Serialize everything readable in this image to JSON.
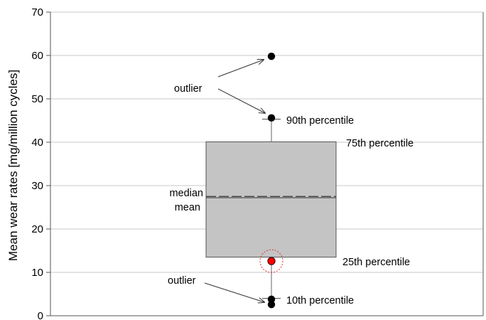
{
  "chart_data": {
    "type": "box",
    "ylabel": "Mean wear rates [mg/million cycles]",
    "ylim": [
      0,
      70
    ],
    "yticks": [
      0,
      10,
      20,
      30,
      40,
      50,
      60,
      70
    ],
    "grid": true,
    "box": {
      "p10": 4.0,
      "p25": 13.5,
      "median": 27.2,
      "mean": 27.5,
      "p75": 40.1,
      "p90": 45.3
    },
    "outliers": [
      59.8,
      45.6,
      3.8,
      2.6
    ],
    "highlight_point": {
      "value": 12.6,
      "color": "#ff0000"
    },
    "annotations": {
      "outlier_top": "outlier",
      "outlier_bottom": "outlier",
      "p90": "90th percentile",
      "p75": "75th percentile",
      "median": "median",
      "mean": "mean",
      "p25": "25th percentile",
      "p10": "10th percentile"
    }
  }
}
